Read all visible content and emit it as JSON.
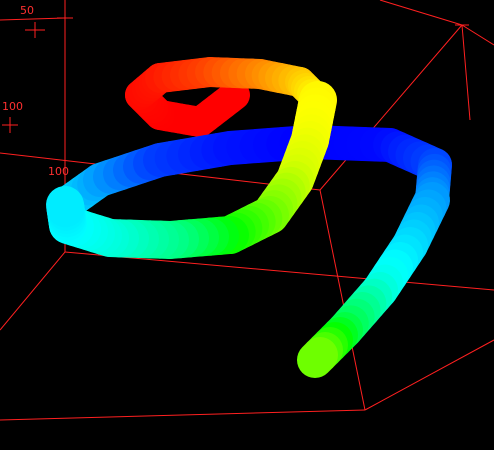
{
  "axis_labels": [
    "50",
    "100",
    "100"
  ]
}
